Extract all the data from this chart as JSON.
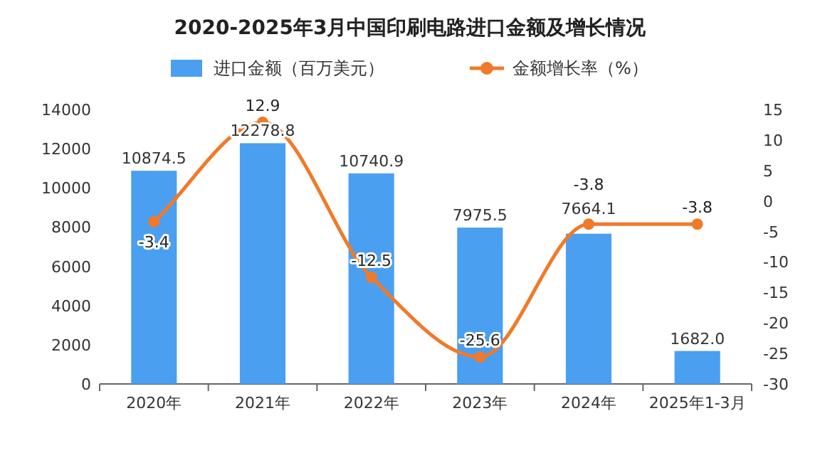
{
  "chart_data": {
    "type": "bar",
    "title": "2020-2025年3月中国印刷电路进口金额及增长情况",
    "categories": [
      "2020年",
      "2021年",
      "2022年",
      "2023年",
      "2024年",
      "2025年1-3月"
    ],
    "series": [
      {
        "name": "进口金额（百万美元）",
        "color": "#4a9ff0",
        "values": [
          10874.5,
          12278.8,
          10740.9,
          7975.5,
          7664.1,
          1682.0
        ],
        "value_labels": [
          "10874.5",
          "12278.8",
          "10740.9",
          "7975.5",
          "7664.1",
          "1682.0"
        ]
      },
      {
        "name": "金额增长率（%）",
        "type": "line",
        "axis": "y2",
        "color": "#f07a2a",
        "marker": "circle",
        "values": [
          -3.4,
          12.9,
          -12.5,
          -25.6,
          -3.8,
          -3.8
        ],
        "value_labels": [
          "-3.4",
          "12.9",
          "-12.5",
          "-25.6",
          "-3.8",
          "-3.8"
        ]
      }
    ],
    "ylim": [
      0,
      14000
    ],
    "yticks": [
      0,
      2000,
      4000,
      6000,
      8000,
      10000,
      12000,
      14000
    ],
    "y2lim": [
      -30,
      15
    ],
    "y2ticks": [
      -30,
      -25,
      -20,
      -15,
      -10,
      -5,
      0,
      5,
      10,
      15
    ],
    "legend": "top",
    "grid": false
  }
}
